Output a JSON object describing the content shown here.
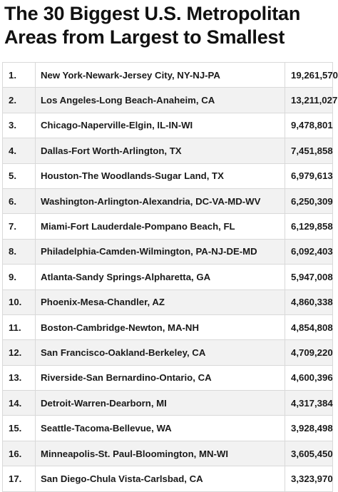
{
  "title": "The 30 Biggest U.S. Metropolitan Areas from Largest to Smallest",
  "rows": [
    {
      "rank": "1.",
      "name": "New York-Newark-Jersey City, NY-NJ-PA",
      "population": "19,261,570"
    },
    {
      "rank": "2.",
      "name": "Los Angeles-Long Beach-Anaheim, CA",
      "population": "13,211,027"
    },
    {
      "rank": "3.",
      "name": "Chicago-Naperville-Elgin, IL-IN-WI",
      "population": "9,478,801"
    },
    {
      "rank": "4.",
      "name": "Dallas-Fort Worth-Arlington, TX",
      "population": "7,451,858"
    },
    {
      "rank": "5.",
      "name": "Houston-The Woodlands-Sugar Land, TX",
      "population": "6,979,613"
    },
    {
      "rank": "6.",
      "name": "Washington-Arlington-Alexandria, DC-VA-MD-WV",
      "population": "6,250,309"
    },
    {
      "rank": "7.",
      "name": "Miami-Fort Lauderdale-Pompano Beach, FL",
      "population": "6,129,858"
    },
    {
      "rank": "8.",
      "name": "Philadelphia-Camden-Wilmington, PA-NJ-DE-MD",
      "population": "6,092,403"
    },
    {
      "rank": "9.",
      "name": "Atlanta-Sandy Springs-Alpharetta, GA",
      "population": "5,947,008"
    },
    {
      "rank": "10.",
      "name": "Phoenix-Mesa-Chandler, AZ",
      "population": "4,860,338"
    },
    {
      "rank": "11.",
      "name": "Boston-Cambridge-Newton, MA-NH",
      "population": "4,854,808"
    },
    {
      "rank": "12.",
      "name": "San Francisco-Oakland-Berkeley, CA",
      "population": "4,709,220"
    },
    {
      "rank": "13.",
      "name": "Riverside-San Bernardino-Ontario, CA",
      "population": "4,600,396"
    },
    {
      "rank": "14.",
      "name": "Detroit-Warren-Dearborn, MI",
      "population": "4,317,384"
    },
    {
      "rank": "15.",
      "name": "Seattle-Tacoma-Bellevue, WA",
      "population": "3,928,498"
    },
    {
      "rank": "16.",
      "name": "Minneapolis-St. Paul-Bloomington, MN-WI",
      "population": "3,605,450"
    },
    {
      "rank": "17.",
      "name": "San Diego-Chula Vista-Carlsbad, CA",
      "population": "3,323,970"
    }
  ]
}
